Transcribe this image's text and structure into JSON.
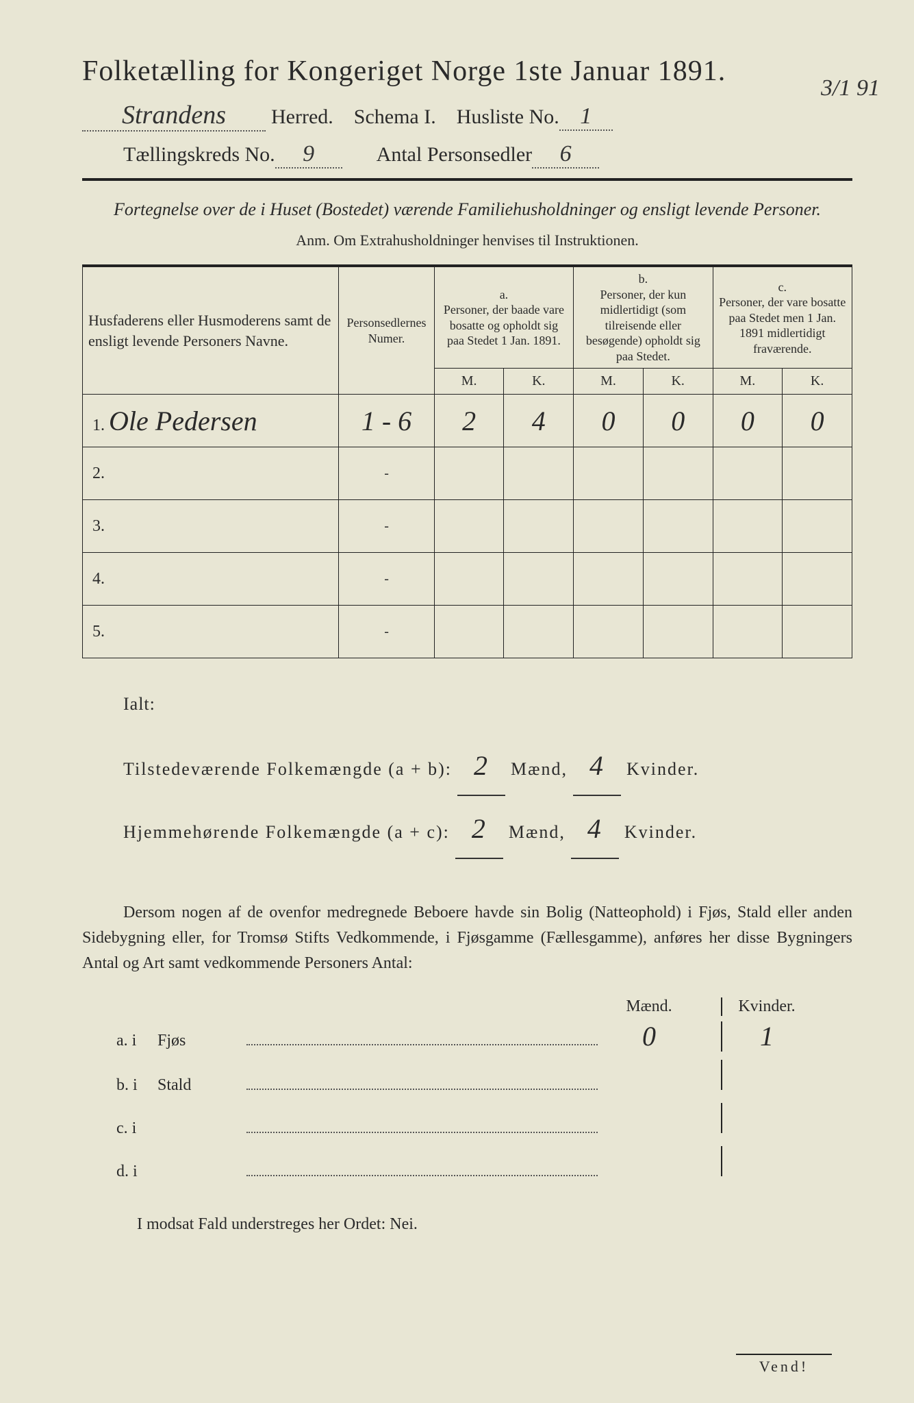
{
  "title": "Folketælling for Kongeriget Norge 1ste Januar 1891.",
  "header": {
    "herred_value": "Strandens",
    "herred_label": "Herred.",
    "schema_label": "Schema I.",
    "husliste_label": "Husliste No.",
    "husliste_value": "1",
    "date_margin": "3/1 91",
    "kreds_label": "Tællingskreds No.",
    "kreds_value": "9",
    "antal_label": "Antal Personsedler",
    "antal_value": "6"
  },
  "subtitle": "Fortegnelse over de i Huset (Bostedet) værende Familiehusholdninger og ensligt levende Personer.",
  "anm": "Anm. Om Extrahusholdninger henvises til Instruktionen.",
  "table": {
    "col_name": "Husfaderens eller Husmoderens samt de ensligt levende Personers Navne.",
    "col_num": "Personsedlernes Numer.",
    "col_a_label": "a.",
    "col_a": "Personer, der baade vare bosatte og opholdt sig paa Stedet 1 Jan. 1891.",
    "col_b_label": "b.",
    "col_b": "Personer, der kun midlertidigt (som tilreisende eller besøgende) opholdt sig paa Stedet.",
    "col_c_label": "c.",
    "col_c": "Personer, der vare bosatte paa Stedet men 1 Jan. 1891 midlertidigt fraværende.",
    "mk_m": "M.",
    "mk_k": "K.",
    "rows": [
      {
        "n": "1.",
        "name": "Ole Pedersen",
        "num": "1 - 6",
        "am": "2",
        "ak": "4",
        "bm": "0",
        "bk": "0",
        "cm": "0",
        "ck": "0"
      },
      {
        "n": "2.",
        "name": "",
        "num": "-",
        "am": "",
        "ak": "",
        "bm": "",
        "bk": "",
        "cm": "",
        "ck": ""
      },
      {
        "n": "3.",
        "name": "",
        "num": "-",
        "am": "",
        "ak": "",
        "bm": "",
        "bk": "",
        "cm": "",
        "ck": ""
      },
      {
        "n": "4.",
        "name": "",
        "num": "-",
        "am": "",
        "ak": "",
        "bm": "",
        "bk": "",
        "cm": "",
        "ck": ""
      },
      {
        "n": "5.",
        "name": "",
        "num": "-",
        "am": "",
        "ak": "",
        "bm": "",
        "bk": "",
        "cm": "",
        "ck": ""
      }
    ]
  },
  "ialt": {
    "label": "Ialt:",
    "line1_lead": "Tilstedeværende Folkemængde (a + b):",
    "line2_lead": "Hjemmehørende Folkemængde (a + c):",
    "maend": "Mænd,",
    "kvinder": "Kvinder.",
    "v1m": "2",
    "v1k": "4",
    "v2m": "2",
    "v2k": "4"
  },
  "dersom": "Dersom nogen af de ovenfor medregnede Beboere havde sin Bolig (Natteophold) i Fjøs, Stald eller anden Sidebygning eller, for Tromsø Stifts Vedkommende, i Fjøsgamme (Fællesgamme), anføres her disse Bygningers Antal og Art samt vedkommende Personers Antal:",
  "bygning": {
    "head_m": "Mænd.",
    "head_k": "Kvinder.",
    "rows": [
      {
        "lab": "a. i",
        "cat": "Fjøs",
        "m": "0",
        "k": "1"
      },
      {
        "lab": "b. i",
        "cat": "Stald",
        "m": "",
        "k": ""
      },
      {
        "lab": "c. i",
        "cat": "",
        "m": "",
        "k": ""
      },
      {
        "lab": "d. i",
        "cat": "",
        "m": "",
        "k": ""
      }
    ]
  },
  "modsat": "I modsat Fald understreges her Ordet: Nei.",
  "vend": "Vend!",
  "colors": {
    "paper": "#e8e6d4",
    "ink": "#2a2a2a",
    "rule": "#222222"
  }
}
